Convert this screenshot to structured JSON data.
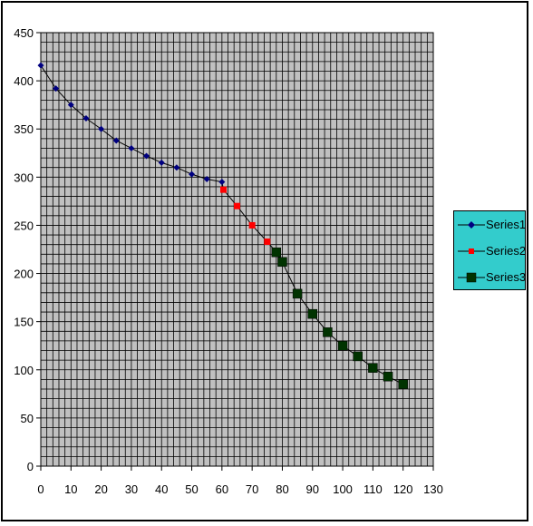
{
  "chart_data": {
    "type": "scatter",
    "title": "",
    "xlabel": "",
    "ylabel": "",
    "xlim": [
      0,
      130
    ],
    "ylim": [
      0,
      450
    ],
    "x_ticks": [
      0,
      10,
      20,
      30,
      40,
      50,
      60,
      70,
      80,
      90,
      100,
      110,
      120,
      130
    ],
    "y_ticks": [
      0,
      50,
      100,
      150,
      200,
      250,
      300,
      350,
      400,
      450
    ],
    "grid": true,
    "legend_position": "right",
    "plot_background": "#c0c0c0",
    "series": [
      {
        "name": "Series1",
        "color": "#000080",
        "marker": "diamond",
        "x": [
          0,
          5,
          10,
          15,
          20,
          25,
          30,
          35,
          40,
          45,
          50,
          55,
          60
        ],
        "y": [
          416,
          392,
          375,
          361,
          350,
          338,
          330,
          322,
          315,
          310,
          303,
          298,
          295
        ]
      },
      {
        "name": "Series2",
        "color": "#ff0000",
        "marker": "square",
        "x": [
          60.5,
          65,
          70,
          75
        ],
        "y": [
          287,
          270,
          250,
          233
        ]
      },
      {
        "name": "Series3",
        "color": "#003300",
        "marker": "square-large",
        "x": [
          78,
          80,
          85,
          90,
          95,
          100,
          105,
          110,
          115,
          120
        ],
        "y": [
          222,
          212,
          179,
          158,
          139,
          125,
          114,
          102,
          93,
          85
        ]
      }
    ]
  }
}
